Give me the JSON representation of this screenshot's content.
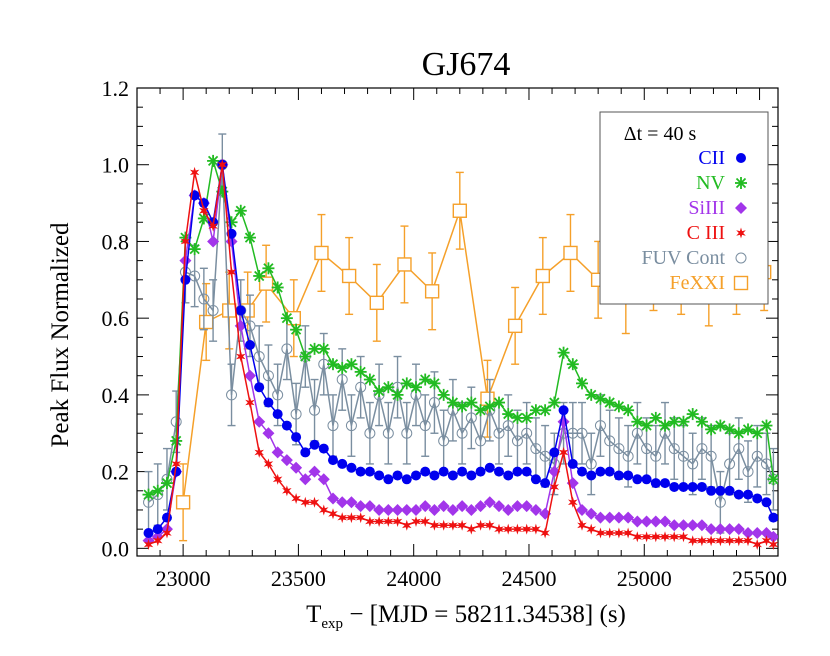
{
  "chart_data": {
    "type": "line",
    "title": "GJ674",
    "xlabel_main": "T",
    "xlabel_sub": "exp",
    "xlabel_rest": " − [MJD = 58211.34538] (s)",
    "ylabel": "Peak Flux Normalized",
    "xlim": [
      22800,
      25580
    ],
    "ylim": [
      -0.02,
      1.2
    ],
    "xticks": [
      23000,
      23500,
      24000,
      24500,
      25000,
      25500
    ],
    "yticks": [
      0.0,
      0.2,
      0.4,
      0.6,
      0.8,
      1.0,
      1.2
    ],
    "legend_title": "Δt = 40 s",
    "legend_position": "top-right",
    "series": [
      {
        "name": "CII",
        "color": "#0000ee",
        "marker": "circle-filled",
        "x": [
          22850,
          22890,
          22930,
          22970,
          23010,
          23050,
          23090,
          23130,
          23170,
          23210,
          23250,
          23290,
          23330,
          23370,
          23410,
          23450,
          23490,
          23530,
          23570,
          23610,
          23650,
          23690,
          23730,
          23770,
          23810,
          23850,
          23890,
          23930,
          23970,
          24010,
          24050,
          24090,
          24130,
          24170,
          24210,
          24250,
          24290,
          24330,
          24370,
          24410,
          24450,
          24490,
          24530,
          24570,
          24610,
          24650,
          24690,
          24730,
          24770,
          24810,
          24850,
          24890,
          24930,
          24970,
          25010,
          25050,
          25090,
          25130,
          25170,
          25210,
          25250,
          25290,
          25330,
          25370,
          25410,
          25450,
          25490,
          25530,
          25560
        ],
        "y": [
          0.04,
          0.05,
          0.08,
          0.2,
          0.7,
          0.92,
          0.9,
          0.85,
          1.0,
          0.82,
          0.62,
          0.53,
          0.42,
          0.38,
          0.35,
          0.32,
          0.29,
          0.25,
          0.27,
          0.26,
          0.23,
          0.22,
          0.21,
          0.2,
          0.2,
          0.19,
          0.18,
          0.19,
          0.18,
          0.19,
          0.2,
          0.19,
          0.2,
          0.19,
          0.2,
          0.19,
          0.2,
          0.21,
          0.2,
          0.19,
          0.2,
          0.2,
          0.18,
          0.17,
          0.25,
          0.36,
          0.22,
          0.2,
          0.19,
          0.2,
          0.2,
          0.19,
          0.19,
          0.18,
          0.18,
          0.17,
          0.17,
          0.16,
          0.16,
          0.16,
          0.16,
          0.15,
          0.15,
          0.15,
          0.14,
          0.14,
          0.13,
          0.12,
          0.08
        ]
      },
      {
        "name": "NV",
        "color": "#22bb22",
        "marker": "asterisk",
        "x": [
          22850,
          22890,
          22930,
          22970,
          23010,
          23050,
          23090,
          23130,
          23170,
          23210,
          23250,
          23290,
          23330,
          23370,
          23410,
          23450,
          23490,
          23530,
          23570,
          23610,
          23650,
          23690,
          23730,
          23770,
          23810,
          23850,
          23890,
          23930,
          23970,
          24010,
          24050,
          24090,
          24130,
          24170,
          24210,
          24250,
          24290,
          24330,
          24370,
          24410,
          24450,
          24490,
          24530,
          24570,
          24610,
          24650,
          24690,
          24730,
          24770,
          24810,
          24850,
          24890,
          24930,
          24970,
          25010,
          25050,
          25090,
          25130,
          25170,
          25210,
          25250,
          25290,
          25330,
          25370,
          25410,
          25450,
          25490,
          25530,
          25560
        ],
        "y": [
          0.14,
          0.15,
          0.17,
          0.28,
          0.81,
          0.78,
          0.86,
          1.01,
          0.93,
          0.85,
          0.88,
          0.81,
          0.71,
          0.73,
          0.68,
          0.6,
          0.57,
          0.5,
          0.52,
          0.52,
          0.48,
          0.47,
          0.48,
          0.46,
          0.44,
          0.41,
          0.42,
          0.4,
          0.43,
          0.42,
          0.44,
          0.43,
          0.4,
          0.38,
          0.37,
          0.38,
          0.36,
          0.37,
          0.38,
          0.35,
          0.34,
          0.34,
          0.36,
          0.36,
          0.38,
          0.51,
          0.48,
          0.43,
          0.4,
          0.39,
          0.38,
          0.37,
          0.36,
          0.33,
          0.32,
          0.34,
          0.32,
          0.33,
          0.33,
          0.35,
          0.33,
          0.31,
          0.32,
          0.31,
          0.3,
          0.31,
          0.3,
          0.32,
          0.18
        ]
      },
      {
        "name": "SiIII",
        "color": "#a235ea",
        "marker": "diamond-filled",
        "x": [
          22850,
          22890,
          22930,
          22970,
          23010,
          23050,
          23090,
          23130,
          23170,
          23210,
          23250,
          23290,
          23330,
          23370,
          23410,
          23450,
          23490,
          23530,
          23570,
          23610,
          23650,
          23690,
          23730,
          23770,
          23810,
          23850,
          23890,
          23930,
          23970,
          24010,
          24050,
          24090,
          24130,
          24170,
          24210,
          24250,
          24290,
          24330,
          24370,
          24410,
          24450,
          24490,
          24530,
          24570,
          24610,
          24650,
          24690,
          24730,
          24770,
          24810,
          24850,
          24890,
          24930,
          24970,
          25010,
          25050,
          25090,
          25130,
          25170,
          25210,
          25250,
          25290,
          25330,
          25370,
          25410,
          25450,
          25490,
          25530,
          25560
        ],
        "y": [
          0.02,
          0.03,
          0.05,
          0.2,
          0.75,
          0.92,
          0.9,
          0.8,
          1.0,
          0.8,
          0.58,
          0.45,
          0.33,
          0.3,
          0.25,
          0.23,
          0.21,
          0.18,
          0.2,
          0.18,
          0.13,
          0.12,
          0.12,
          0.11,
          0.11,
          0.1,
          0.1,
          0.1,
          0.1,
          0.1,
          0.11,
          0.1,
          0.11,
          0.1,
          0.11,
          0.1,
          0.11,
          0.12,
          0.11,
          0.1,
          0.11,
          0.11,
          0.1,
          0.09,
          0.2,
          0.33,
          0.17,
          0.1,
          0.09,
          0.08,
          0.08,
          0.08,
          0.08,
          0.07,
          0.07,
          0.07,
          0.07,
          0.06,
          0.06,
          0.06,
          0.06,
          0.05,
          0.05,
          0.05,
          0.05,
          0.04,
          0.04,
          0.04,
          0.03
        ]
      },
      {
        "name": "C III",
        "color": "#ee1111",
        "marker": "star",
        "x": [
          22850,
          22890,
          22930,
          22970,
          23010,
          23050,
          23090,
          23130,
          23170,
          23210,
          23250,
          23290,
          23330,
          23370,
          23410,
          23450,
          23490,
          23530,
          23570,
          23610,
          23650,
          23690,
          23730,
          23770,
          23810,
          23850,
          23890,
          23930,
          23970,
          24010,
          24050,
          24090,
          24130,
          24170,
          24210,
          24250,
          24290,
          24330,
          24370,
          24410,
          24450,
          24490,
          24530,
          24570,
          24610,
          24650,
          24690,
          24730,
          24770,
          24810,
          24850,
          24890,
          24930,
          24970,
          25010,
          25050,
          25090,
          25130,
          25170,
          25210,
          25250,
          25290,
          25330,
          25370,
          25410,
          25450,
          25490,
          25530,
          25560
        ],
        "y": [
          0.01,
          0.02,
          0.04,
          0.22,
          0.8,
          0.98,
          0.88,
          0.84,
          1.0,
          0.72,
          0.5,
          0.38,
          0.25,
          0.22,
          0.18,
          0.15,
          0.13,
          0.12,
          0.12,
          0.1,
          0.09,
          0.08,
          0.08,
          0.08,
          0.07,
          0.07,
          0.07,
          0.07,
          0.06,
          0.07,
          0.07,
          0.06,
          0.06,
          0.06,
          0.06,
          0.05,
          0.06,
          0.06,
          0.05,
          0.05,
          0.05,
          0.05,
          0.05,
          0.04,
          0.16,
          0.25,
          0.12,
          0.06,
          0.05,
          0.04,
          0.04,
          0.04,
          0.04,
          0.03,
          0.03,
          0.03,
          0.03,
          0.03,
          0.03,
          0.02,
          0.02,
          0.02,
          0.02,
          0.02,
          0.02,
          0.02,
          0.01,
          0.02,
          0.01
        ]
      },
      {
        "name": "FUV Cont",
        "color": "#7a8ea0",
        "marker": "circle-open",
        "x": [
          22850,
          22890,
          22930,
          22970,
          23010,
          23050,
          23090,
          23130,
          23170,
          23210,
          23250,
          23290,
          23330,
          23370,
          23410,
          23450,
          23490,
          23530,
          23570,
          23610,
          23650,
          23690,
          23730,
          23770,
          23810,
          23850,
          23890,
          23930,
          23970,
          24010,
          24050,
          24090,
          24130,
          24170,
          24210,
          24250,
          24290,
          24330,
          24370,
          24410,
          24450,
          24490,
          24530,
          24570,
          24610,
          24650,
          24690,
          24730,
          24770,
          24810,
          24850,
          24890,
          24930,
          24970,
          25010,
          25050,
          25090,
          25130,
          25170,
          25210,
          25250,
          25290,
          25330,
          25370,
          25410,
          25450,
          25490,
          25530,
          25560
        ],
        "y": [
          0.12,
          0.14,
          0.18,
          0.33,
          0.72,
          0.71,
          0.65,
          0.62,
          1.0,
          0.4,
          0.62,
          0.58,
          0.5,
          0.45,
          0.4,
          0.52,
          0.35,
          0.5,
          0.36,
          0.48,
          0.32,
          0.44,
          0.32,
          0.42,
          0.3,
          0.4,
          0.3,
          0.42,
          0.3,
          0.4,
          0.32,
          0.38,
          0.28,
          0.36,
          0.3,
          0.34,
          0.28,
          0.36,
          0.3,
          0.32,
          0.28,
          0.3,
          0.26,
          0.24,
          0.22,
          0.3,
          0.3,
          0.3,
          0.22,
          0.32,
          0.28,
          0.26,
          0.24,
          0.3,
          0.26,
          0.24,
          0.3,
          0.26,
          0.24,
          0.22,
          0.26,
          0.24,
          0.12,
          0.22,
          0.26,
          0.2,
          0.24,
          0.22,
          0.18
        ],
        "err": 0.08
      },
      {
        "name": "FeXXI",
        "color": "#f5a02a",
        "marker": "square-open",
        "x": [
          23000,
          23100,
          23200,
          23280,
          23360,
          23480,
          23600,
          23720,
          23840,
          23960,
          24080,
          24200,
          24320,
          24440,
          24560,
          24680,
          24800,
          24920,
          25040,
          25160,
          25280,
          25400,
          25520
        ],
        "y": [
          0.12,
          0.59,
          0.62,
          0.62,
          0.69,
          0.6,
          0.77,
          0.71,
          0.64,
          0.74,
          0.67,
          0.88,
          0.39,
          0.58,
          0.71,
          0.77,
          0.7,
          0.66,
          0.72,
          0.71,
          0.68,
          0.71,
          0.72
        ],
        "err": 0.1
      }
    ]
  }
}
